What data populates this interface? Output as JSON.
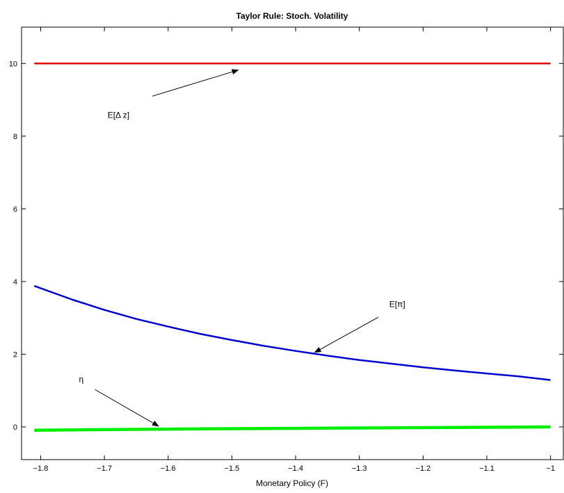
{
  "chart_data": {
    "type": "line",
    "title": "Taylor Rule:  Stoch. Volatility",
    "xlabel": "Monetary Policy (F)",
    "ylabel": "",
    "xlim": [
      -1.83,
      -0.98
    ],
    "ylim": [
      -0.9,
      11.0
    ],
    "xticks": [
      -1.8,
      -1.7,
      -1.6,
      -1.5,
      -1.4,
      -1.3,
      -1.2,
      -1.1,
      -1
    ],
    "xtick_labels": [
      "−1.8",
      "−1.7",
      "−1.6",
      "−1.5",
      "−1.4",
      "−1.3",
      "−1.2",
      "−1.1",
      "−1"
    ],
    "yticks": [
      0,
      2,
      4,
      6,
      8,
      10
    ],
    "ytick_labels": [
      "0",
      "2",
      "4",
      "6",
      "8",
      "10"
    ],
    "grid": false,
    "series": [
      {
        "name": "E[Δ z]",
        "color": "#e00000",
        "width": 2.5,
        "x": [
          -1.81,
          -1.7,
          -1.6,
          -1.5,
          -1.4,
          -1.3,
          -1.2,
          -1.1,
          -1.0
        ],
        "y": [
          10,
          10,
          10,
          10,
          10,
          10,
          10,
          10,
          10
        ]
      },
      {
        "name": "E[π]",
        "color": "#0000d0",
        "width": 2.5,
        "x": [
          -1.81,
          -1.75,
          -1.7,
          -1.65,
          -1.6,
          -1.55,
          -1.5,
          -1.45,
          -1.4,
          -1.35,
          -1.3,
          -1.25,
          -1.2,
          -1.15,
          -1.1,
          -1.05,
          -1.0
        ],
        "y": [
          3.88,
          3.5,
          3.22,
          2.97,
          2.76,
          2.56,
          2.39,
          2.23,
          2.09,
          1.96,
          1.84,
          1.74,
          1.64,
          1.55,
          1.47,
          1.39,
          1.29
        ]
      },
      {
        "name": "η",
        "color": "#00ee00",
        "width": 4.5,
        "x": [
          -1.81,
          -1.6,
          -1.4,
          -1.2,
          -1.0
        ],
        "y": [
          -0.09,
          -0.06,
          -0.04,
          -0.02,
          0.0
        ]
      }
    ],
    "annotations": [
      {
        "text": "E[Δ z]",
        "text_x": -1.695,
        "text_y": 8.5,
        "arrow_from": [
          -1.625,
          9.1
        ],
        "arrow_to": [
          -1.49,
          9.82
        ]
      },
      {
        "text": "E[π]",
        "text_x": -1.253,
        "text_y": 3.3,
        "arrow_from": [
          -1.27,
          3.02
        ],
        "arrow_to": [
          -1.37,
          2.05
        ]
      },
      {
        "text": "η",
        "text_x": -1.74,
        "text_y": 1.23,
        "arrow_from": [
          -1.715,
          1.03
        ],
        "arrow_to": [
          -1.615,
          0.02
        ]
      }
    ]
  }
}
